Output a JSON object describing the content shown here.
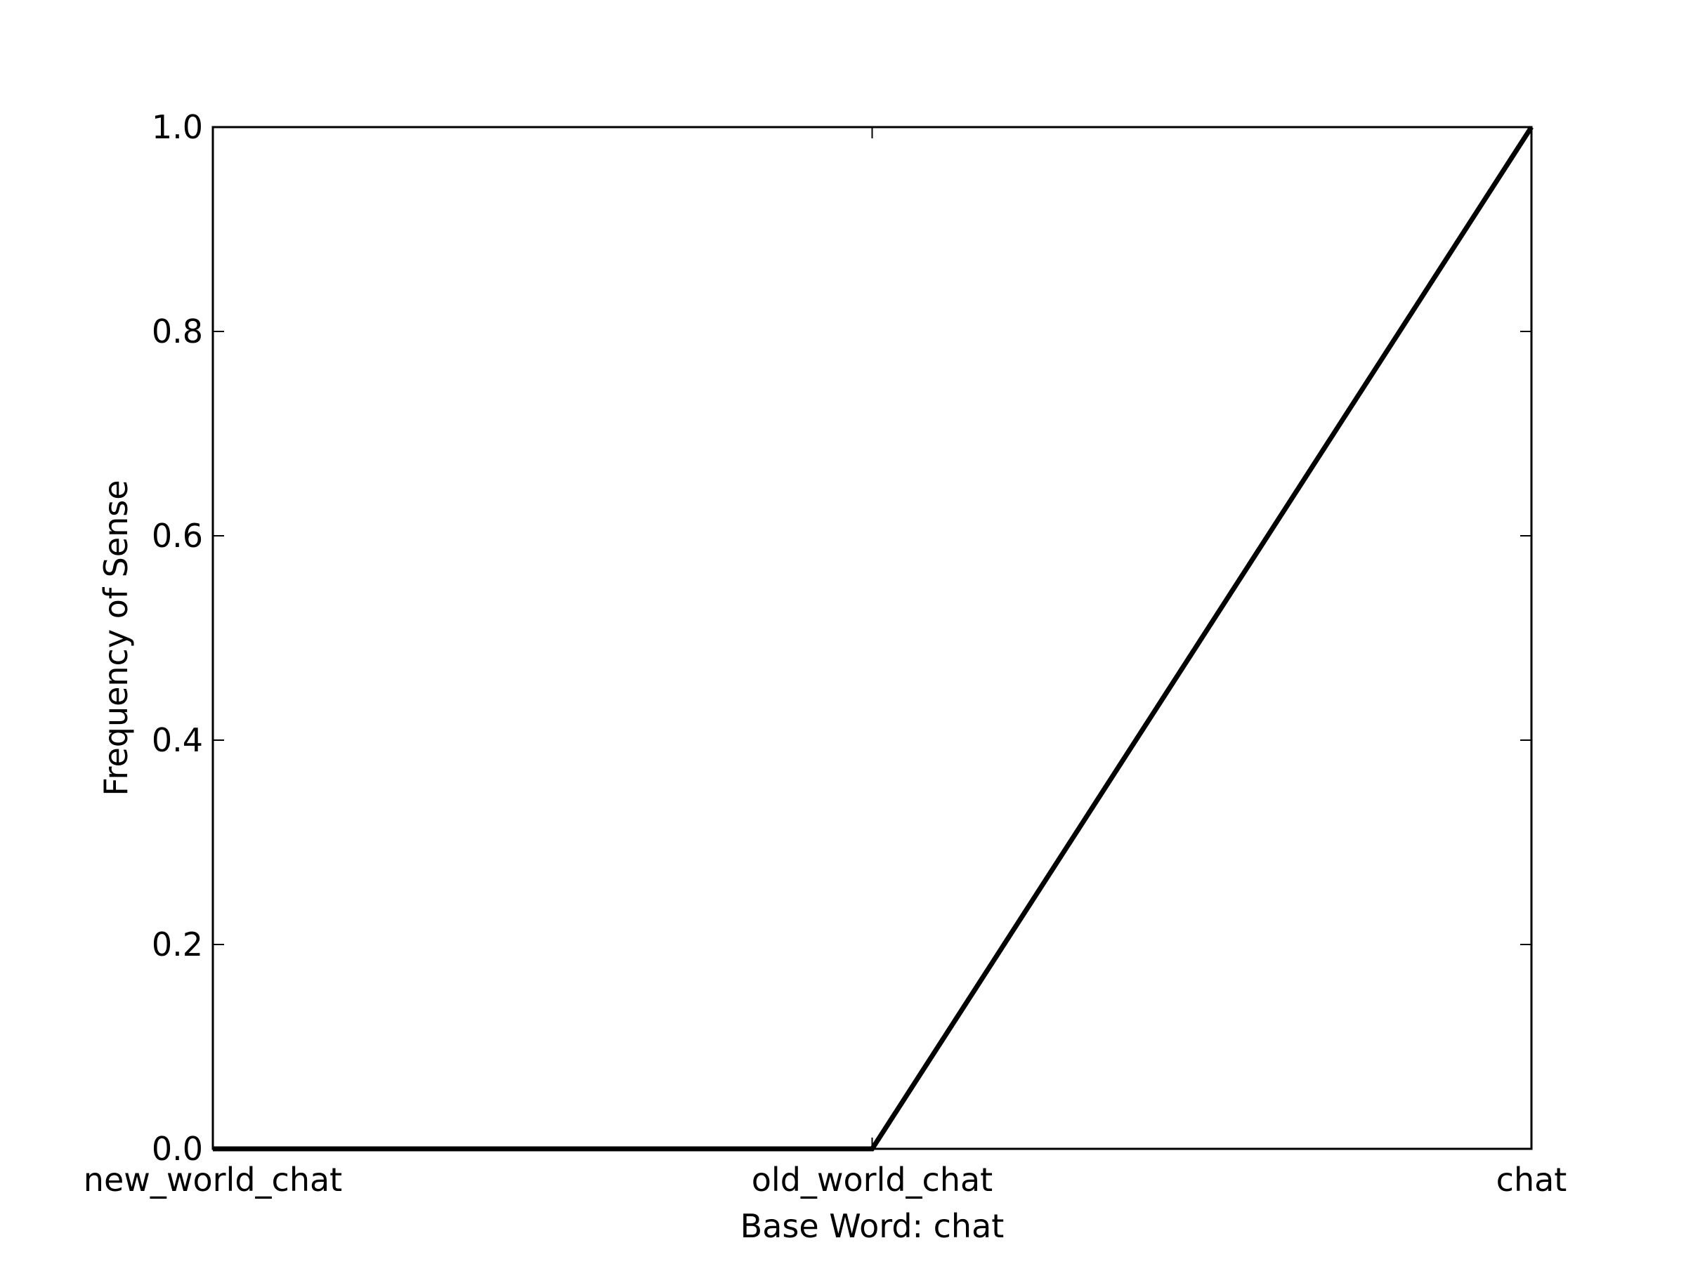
{
  "chart_data": {
    "type": "line",
    "title": "",
    "xlabel": "Base Word: chat",
    "ylabel": "Frequency of Sense",
    "categories": [
      "new_world_chat",
      "old_world_chat",
      "chat"
    ],
    "series": [
      {
        "values": [
          0.0,
          0.0,
          1.0
        ]
      }
    ],
    "ylim": [
      0.0,
      1.0
    ],
    "yticks": [
      "0.0",
      "0.2",
      "0.4",
      "0.6",
      "0.8",
      "1.0"
    ],
    "grid": false,
    "line_color": "#000000"
  }
}
